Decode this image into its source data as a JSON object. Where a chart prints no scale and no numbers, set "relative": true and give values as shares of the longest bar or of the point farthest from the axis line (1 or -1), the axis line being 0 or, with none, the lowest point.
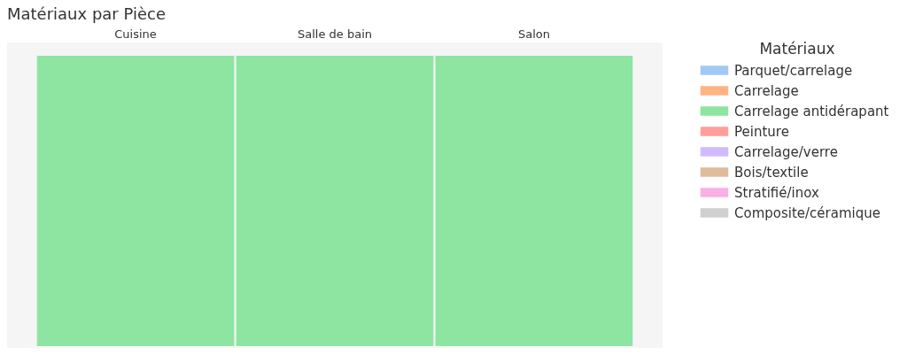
{
  "chart_data": {
    "type": "bar",
    "title": "Matériaux par Pièce",
    "legend_title": "Matériaux",
    "categories": [
      "Cuisine",
      "Salle de bain",
      "Salon"
    ],
    "relative": true,
    "stacked": true,
    "legend": "right",
    "series": [
      {
        "name": "Parquet/carrelage",
        "color": "#a1c9f4",
        "values": [
          null,
          null,
          null
        ]
      },
      {
        "name": "Carrelage",
        "color": "#ffb482",
        "values": [
          null,
          null,
          null
        ]
      },
      {
        "name": "Carrelage antidérapant",
        "color": "#8de5a1",
        "values": [
          1,
          1,
          1
        ]
      },
      {
        "name": "Peinture",
        "color": "#ff9f9b",
        "values": [
          null,
          null,
          null
        ]
      },
      {
        "name": "Carrelage/verre",
        "color": "#d0bbff",
        "values": [
          null,
          null,
          null
        ]
      },
      {
        "name": "Bois/textile",
        "color": "#debb9b",
        "values": [
          null,
          null,
          null
        ]
      },
      {
        "name": "Stratifié/inox",
        "color": "#fab0e4",
        "values": [
          null,
          null,
          null
        ]
      },
      {
        "name": "Composite/céramique",
        "color": "#cfcfcf",
        "values": [
          null,
          null,
          null
        ]
      }
    ]
  }
}
